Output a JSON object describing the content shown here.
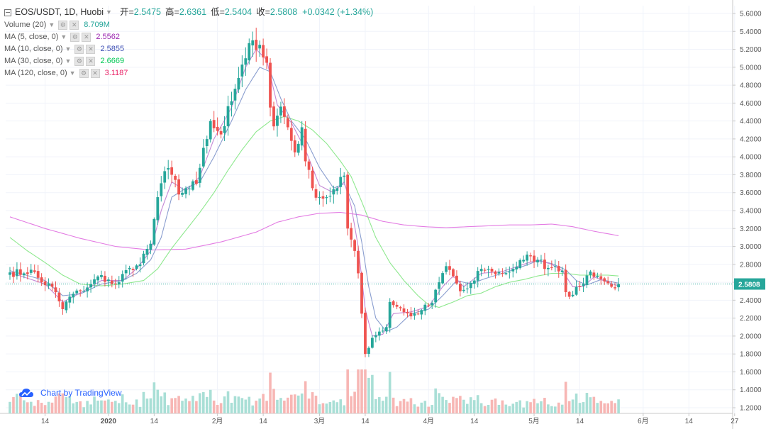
{
  "header": {
    "symbol": "EOS/USDT, 1D, Huobi",
    "open_label": "开=",
    "open": "2.5475",
    "high_label": "高=",
    "high": "2.6361",
    "low_label": "低=",
    "low": "2.5404",
    "close_label": "收=",
    "close": "2.5808",
    "change": "+0.0342 (+1.34%)"
  },
  "indicators": [
    {
      "label": "Volume (20)",
      "value": "8.709M",
      "color": "#26a69a"
    },
    {
      "label": "MA (5, close, 0)",
      "value": "2.5562",
      "color": "#9c27b0"
    },
    {
      "label": "MA (10, close, 0)",
      "value": "2.5855",
      "color": "#3f51b5"
    },
    {
      "label": "MA (30, close, 0)",
      "value": "2.6669",
      "color": "#00c853"
    },
    {
      "label": "MA (120, close, 0)",
      "value": "3.1187",
      "color": "#e91e63"
    }
  ],
  "branding": {
    "text": "Chart by TradingView"
  },
  "colors": {
    "up": "#26a69a",
    "down": "#ef5350",
    "ma5": "#c58ad6",
    "ma10": "#8a9ecf",
    "ma30": "#8ee88e",
    "ma120": "#e37ce3",
    "price_line": "#26a69a"
  },
  "chart_data": {
    "type": "candlestick",
    "timeframe": "1D",
    "ylim": [
      1.15,
      5.72
    ],
    "y_ticks": [
      "5.6000",
      "5.4000",
      "5.2000",
      "5.0000",
      "4.8000",
      "4.6000",
      "4.4000",
      "4.2000",
      "4.0000",
      "3.8000",
      "3.6000",
      "3.4000",
      "3.2000",
      "3.0000",
      "2.8000",
      "2.6000",
      "2.4000",
      "2.2000",
      "2.0000",
      "1.8000",
      "1.6000",
      "1.4000",
      "1.2000"
    ],
    "x_ticks": [
      {
        "label": "14",
        "day": 10
      },
      {
        "label": "2020",
        "day": 28
      },
      {
        "label": "14",
        "day": 41
      },
      {
        "label": "2月",
        "day": 59
      },
      {
        "label": "14",
        "day": 72
      },
      {
        "label": "3月",
        "day": 88
      },
      {
        "label": "14",
        "day": 101
      },
      {
        "label": "4月",
        "day": 119
      },
      {
        "label": "14",
        "day": 132
      },
      {
        "label": "5月",
        "day": 149
      },
      {
        "label": "14",
        "day": 162
      },
      {
        "label": "6月",
        "day": 180
      },
      {
        "label": "14",
        "day": 193
      },
      {
        "label": "27",
        "day": 206
      }
    ],
    "last_price": "2.5808",
    "close_anchors": [
      [
        0,
        2.71
      ],
      [
        4,
        2.7
      ],
      [
        6,
        2.74
      ],
      [
        9,
        2.6
      ],
      [
        12,
        2.55
      ],
      [
        15,
        2.3
      ],
      [
        17,
        2.44
      ],
      [
        20,
        2.5
      ],
      [
        23,
        2.58
      ],
      [
        26,
        2.68
      ],
      [
        29,
        2.58
      ],
      [
        31,
        2.6
      ],
      [
        34,
        2.76
      ],
      [
        37,
        2.8
      ],
      [
        40,
        3.03
      ],
      [
        42,
        3.55
      ],
      [
        44,
        3.84
      ],
      [
        46,
        3.8
      ],
      [
        48,
        3.58
      ],
      [
        50,
        3.65
      ],
      [
        53,
        3.7
      ],
      [
        55,
        4.1
      ],
      [
        57,
        4.4
      ],
      [
        60,
        4.25
      ],
      [
        63,
        4.62
      ],
      [
        65,
        4.88
      ],
      [
        67,
        5.1
      ],
      [
        69,
        5.3
      ],
      [
        71,
        5.25
      ],
      [
        73,
        5.05
      ],
      [
        74,
        4.55
      ],
      [
        75,
        4.34
      ],
      [
        77,
        4.56
      ],
      [
        79,
        4.33
      ],
      [
        81,
        4.05
      ],
      [
        83,
        4.33
      ],
      [
        84,
        3.95
      ],
      [
        86,
        3.65
      ],
      [
        88,
        3.55
      ],
      [
        90,
        3.55
      ],
      [
        93,
        3.65
      ],
      [
        95,
        3.79
      ],
      [
        96,
        3.2
      ],
      [
        98,
        2.95
      ],
      [
        99,
        2.7
      ],
      [
        100,
        2.25
      ],
      [
        101,
        1.8
      ],
      [
        103,
        1.98
      ],
      [
        105,
        2.05
      ],
      [
        107,
        2.1
      ],
      [
        108,
        2.38
      ],
      [
        111,
        2.31
      ],
      [
        114,
        2.22
      ],
      [
        117,
        2.29
      ],
      [
        120,
        2.37
      ],
      [
        122,
        2.6
      ],
      [
        124,
        2.78
      ],
      [
        126,
        2.67
      ],
      [
        128,
        2.5
      ],
      [
        130,
        2.53
      ],
      [
        132,
        2.62
      ],
      [
        134,
        2.75
      ],
      [
        137,
        2.72
      ],
      [
        140,
        2.7
      ],
      [
        143,
        2.75
      ],
      [
        146,
        2.85
      ],
      [
        148,
        2.89
      ],
      [
        150,
        2.85
      ],
      [
        153,
        2.76
      ],
      [
        155,
        2.78
      ],
      [
        157,
        2.73
      ],
      [
        158,
        2.49
      ],
      [
        160,
        2.46
      ],
      [
        162,
        2.55
      ],
      [
        165,
        2.72
      ],
      [
        167,
        2.67
      ],
      [
        169,
        2.61
      ],
      [
        171,
        2.55
      ],
      [
        173,
        2.58
      ]
    ],
    "ma_anchors": {
      "ma5": [
        [
          0,
          2.71
        ],
        [
          10,
          2.58
        ],
        [
          15,
          2.38
        ],
        [
          20,
          2.48
        ],
        [
          26,
          2.62
        ],
        [
          32,
          2.62
        ],
        [
          36,
          2.75
        ],
        [
          40,
          2.95
        ],
        [
          43,
          3.4
        ],
        [
          46,
          3.72
        ],
        [
          50,
          3.62
        ],
        [
          54,
          3.78
        ],
        [
          58,
          4.2
        ],
        [
          63,
          4.55
        ],
        [
          67,
          5.0
        ],
        [
          70,
          5.2
        ],
        [
          73,
          5.08
        ],
        [
          76,
          4.58
        ],
        [
          80,
          4.38
        ],
        [
          84,
          4.08
        ],
        [
          88,
          3.68
        ],
        [
          92,
          3.6
        ],
        [
          95,
          3.72
        ],
        [
          97,
          3.45
        ],
        [
          99,
          3.0
        ],
        [
          101,
          2.3
        ],
        [
          103,
          2.0
        ],
        [
          106,
          2.02
        ],
        [
          109,
          2.25
        ],
        [
          114,
          2.27
        ],
        [
          119,
          2.33
        ],
        [
          123,
          2.55
        ],
        [
          126,
          2.67
        ],
        [
          129,
          2.55
        ],
        [
          134,
          2.7
        ],
        [
          140,
          2.72
        ],
        [
          146,
          2.8
        ],
        [
          150,
          2.85
        ],
        [
          154,
          2.8
        ],
        [
          157,
          2.73
        ],
        [
          160,
          2.55
        ],
        [
          163,
          2.55
        ],
        [
          166,
          2.66
        ],
        [
          170,
          2.6
        ],
        [
          173,
          2.56
        ]
      ],
      "ma10": [
        [
          0,
          2.73
        ],
        [
          10,
          2.62
        ],
        [
          15,
          2.45
        ],
        [
          20,
          2.47
        ],
        [
          26,
          2.58
        ],
        [
          32,
          2.62
        ],
        [
          36,
          2.7
        ],
        [
          40,
          2.85
        ],
        [
          43,
          3.1
        ],
        [
          46,
          3.55
        ],
        [
          50,
          3.65
        ],
        [
          54,
          3.72
        ],
        [
          58,
          4.0
        ],
        [
          63,
          4.4
        ],
        [
          67,
          4.75
        ],
        [
          71,
          5.0
        ],
        [
          74,
          4.95
        ],
        [
          77,
          4.65
        ],
        [
          80,
          4.4
        ],
        [
          84,
          4.2
        ],
        [
          88,
          3.88
        ],
        [
          92,
          3.65
        ],
        [
          95,
          3.7
        ],
        [
          98,
          3.45
        ],
        [
          100,
          3.05
        ],
        [
          102,
          2.55
        ],
        [
          104,
          2.2
        ],
        [
          107,
          2.05
        ],
        [
          110,
          2.1
        ],
        [
          114,
          2.25
        ],
        [
          119,
          2.3
        ],
        [
          123,
          2.45
        ],
        [
          127,
          2.62
        ],
        [
          131,
          2.58
        ],
        [
          135,
          2.64
        ],
        [
          140,
          2.7
        ],
        [
          146,
          2.78
        ],
        [
          150,
          2.84
        ],
        [
          154,
          2.81
        ],
        [
          158,
          2.74
        ],
        [
          161,
          2.62
        ],
        [
          164,
          2.57
        ],
        [
          168,
          2.63
        ],
        [
          173,
          2.59
        ]
      ],
      "ma30": [
        [
          0,
          3.1
        ],
        [
          5,
          2.95
        ],
        [
          10,
          2.82
        ],
        [
          15,
          2.68
        ],
        [
          20,
          2.58
        ],
        [
          26,
          2.56
        ],
        [
          32,
          2.58
        ],
        [
          38,
          2.62
        ],
        [
          42,
          2.75
        ],
        [
          46,
          2.98
        ],
        [
          50,
          3.18
        ],
        [
          54,
          3.38
        ],
        [
          58,
          3.6
        ],
        [
          62,
          3.85
        ],
        [
          66,
          4.08
        ],
        [
          70,
          4.28
        ],
        [
          74,
          4.4
        ],
        [
          78,
          4.45
        ],
        [
          82,
          4.4
        ],
        [
          86,
          4.3
        ],
        [
          90,
          4.15
        ],
        [
          94,
          3.95
        ],
        [
          97,
          3.78
        ],
        [
          100,
          3.5
        ],
        [
          104,
          3.1
        ],
        [
          108,
          2.82
        ],
        [
          112,
          2.62
        ],
        [
          116,
          2.45
        ],
        [
          119,
          2.35
        ],
        [
          122,
          2.32
        ],
        [
          126,
          2.38
        ],
        [
          130,
          2.45
        ],
        [
          134,
          2.48
        ],
        [
          138,
          2.55
        ],
        [
          142,
          2.6
        ],
        [
          146,
          2.63
        ],
        [
          150,
          2.67
        ],
        [
          154,
          2.7
        ],
        [
          158,
          2.7
        ],
        [
          162,
          2.68
        ],
        [
          166,
          2.68
        ],
        [
          170,
          2.68
        ],
        [
          173,
          2.67
        ]
      ],
      "ma120": [
        [
          0,
          3.33
        ],
        [
          10,
          3.2
        ],
        [
          20,
          3.09
        ],
        [
          30,
          3.0
        ],
        [
          40,
          2.96
        ],
        [
          50,
          2.97
        ],
        [
          60,
          3.05
        ],
        [
          70,
          3.16
        ],
        [
          76,
          3.27
        ],
        [
          82,
          3.33
        ],
        [
          88,
          3.37
        ],
        [
          94,
          3.38
        ],
        [
          100,
          3.35
        ],
        [
          106,
          3.28
        ],
        [
          112,
          3.24
        ],
        [
          118,
          3.22
        ],
        [
          124,
          3.21
        ],
        [
          130,
          3.22
        ],
        [
          136,
          3.23
        ],
        [
          142,
          3.24
        ],
        [
          148,
          3.24
        ],
        [
          154,
          3.25
        ],
        [
          160,
          3.22
        ],
        [
          166,
          3.17
        ],
        [
          173,
          3.12
        ]
      ]
    }
  }
}
